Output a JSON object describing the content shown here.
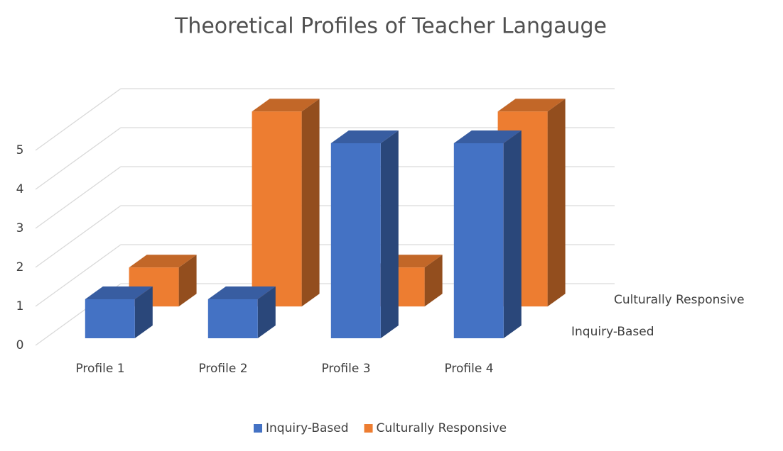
{
  "chart_data": {
    "type": "bar3d",
    "title": "Theoretical Profiles of Teacher Langauge",
    "categories": [
      "Profile 1",
      "Profile 2",
      "Profile 3",
      "Profile 4"
    ],
    "series": [
      {
        "name": "Inquiry-Based",
        "color": "#4472c4",
        "values": [
          1,
          1,
          5,
          5
        ]
      },
      {
        "name": "Culturally Responsive",
        "color": "#ed7d31",
        "values": [
          1,
          5,
          1,
          5
        ]
      }
    ],
    "ylim": [
      0,
      5
    ],
    "yticks": [
      0,
      1,
      2,
      3,
      4,
      5
    ],
    "grid": true,
    "legend": "bottom"
  }
}
